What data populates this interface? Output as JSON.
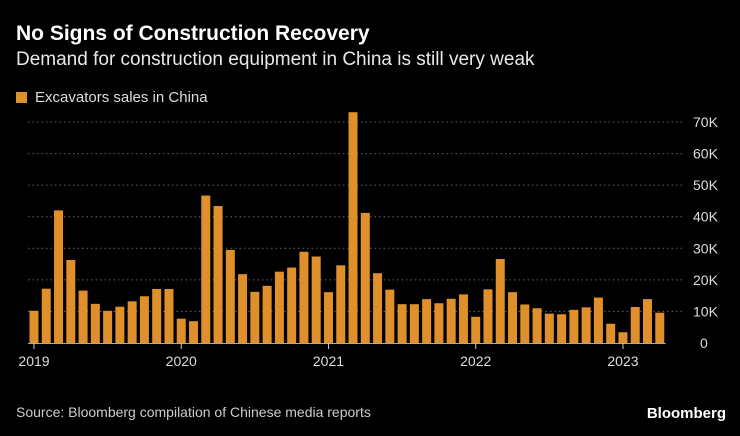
{
  "title": "No Signs of Construction Recovery",
  "subtitle": "Demand for construction equipment in China is still very weak",
  "source": "Source: Bloomberg compilation of Chinese media reports",
  "logo": "Bloomberg",
  "colors": {
    "bar": "#e0902b",
    "background": "#000000",
    "grid": "#666666"
  },
  "chart_data": {
    "type": "bar",
    "title": "No Signs of Construction Recovery",
    "subtitle": "Demand for construction equipment in China is still very weak",
    "legend": {
      "position": "top-left",
      "entries": [
        "Excavators sales in China"
      ]
    },
    "series": [
      {
        "name": "Excavators sales in China",
        "values": [
          10200,
          17200,
          42000,
          26300,
          16600,
          12400,
          10200,
          11500,
          13200,
          14800,
          17100,
          17100,
          7700,
          6900,
          46700,
          43400,
          29500,
          21800,
          16200,
          18100,
          22600,
          23900,
          28900,
          27400,
          16100,
          24600,
          73100,
          41200,
          22100,
          16900,
          12300,
          12300,
          13900,
          12600,
          14000,
          15400,
          8300,
          17000,
          26600,
          16100,
          12200,
          11000,
          9300,
          9100,
          10500,
          11300,
          14400,
          6100,
          3400,
          11400,
          13900,
          9600
        ]
      }
    ],
    "x_start": "2019-01",
    "x_end": "2023-04",
    "frequency": "monthly",
    "x_tick_labels": [
      "2019",
      "2020",
      "2021",
      "2022",
      "2023"
    ],
    "y_tick_labels": [
      "0",
      "10K",
      "20K",
      "30K",
      "40K",
      "50K",
      "60K",
      "70K"
    ],
    "ylim": [
      0,
      70000
    ],
    "y_axis_side": "right",
    "grid": "horizontal dotted"
  }
}
